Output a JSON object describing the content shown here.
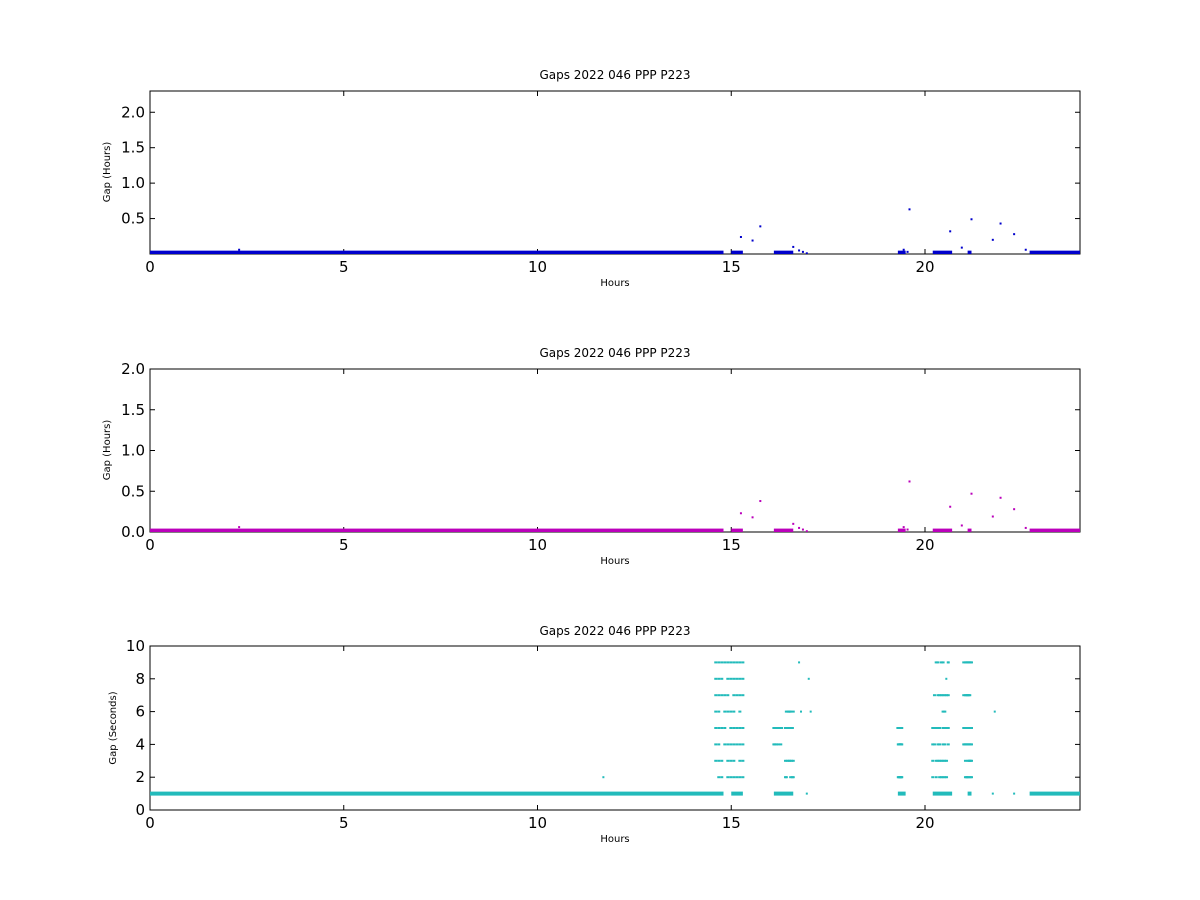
{
  "chart_data": [
    {
      "type": "scatter",
      "title": "Gaps 2022 046 PPP  P223",
      "xlabel": "Hours",
      "ylabel": "Gap (Hours)",
      "xlim": [
        0,
        24
      ],
      "ylim": [
        0,
        2.3
      ],
      "x_ticks": [
        0,
        5,
        10,
        15,
        20
      ],
      "x_tick_labels": [
        "0",
        "5",
        "10",
        "15",
        "20"
      ],
      "y_ticks": [
        0.5,
        1.0,
        1.5,
        2.0
      ],
      "y_tick_labels": [
        "0.5",
        "1.0",
        "1.5",
        "2.0"
      ],
      "grid": false,
      "color": "#0000cc",
      "series": [
        {
          "baseline_segments": [
            [
              0,
              14.8
            ],
            [
              15.0,
              15.3
            ],
            [
              16.1,
              16.6
            ],
            [
              19.3,
              19.5
            ],
            [
              20.2,
              20.7
            ],
            [
              21.1,
              21.2
            ],
            [
              22.7,
              24
            ]
          ],
          "baseline_value": 0.005,
          "points": [
            [
              2.3,
              0.06
            ],
            [
              6.0,
              0.02
            ],
            [
              15.25,
              0.24
            ],
            [
              15.55,
              0.19
            ],
            [
              15.75,
              0.39
            ],
            [
              16.6,
              0.1
            ],
            [
              16.75,
              0.05
            ],
            [
              16.85,
              0.03
            ],
            [
              16.95,
              0.01
            ],
            [
              19.45,
              0.06
            ],
            [
              19.55,
              0.03
            ],
            [
              19.6,
              0.63
            ],
            [
              20.65,
              0.32
            ],
            [
              20.95,
              0.09
            ],
            [
              21.2,
              0.49
            ],
            [
              21.75,
              0.2
            ],
            [
              21.95,
              0.43
            ],
            [
              22.3,
              0.28
            ],
            [
              22.6,
              0.06
            ]
          ]
        }
      ]
    },
    {
      "type": "scatter",
      "title": "Gaps 2022 046 PPP  P223",
      "xlabel": "Hours",
      "ylabel": "Gap (Hours)",
      "xlim": [
        0,
        24
      ],
      "ylim": [
        0,
        2.0
      ],
      "x_ticks": [
        0,
        5,
        10,
        15,
        20
      ],
      "x_tick_labels": [
        "0",
        "5",
        "10",
        "15",
        "20"
      ],
      "y_ticks": [
        0.0,
        0.5,
        1.0,
        1.5,
        2.0
      ],
      "y_tick_labels": [
        "0.0",
        "0.5",
        "1.0",
        "1.5",
        "2.0"
      ],
      "grid": false,
      "color": "#bb00bb",
      "series": [
        {
          "baseline_segments": [
            [
              0,
              14.8
            ],
            [
              15.0,
              15.3
            ],
            [
              16.1,
              16.6
            ],
            [
              19.3,
              19.5
            ],
            [
              20.2,
              20.7
            ],
            [
              21.1,
              21.2
            ],
            [
              22.7,
              24
            ]
          ],
          "baseline_value": 0.005,
          "points": [
            [
              2.3,
              0.06
            ],
            [
              6.0,
              0.02
            ],
            [
              15.25,
              0.23
            ],
            [
              15.55,
              0.18
            ],
            [
              15.75,
              0.38
            ],
            [
              16.6,
              0.1
            ],
            [
              16.75,
              0.05
            ],
            [
              16.85,
              0.03
            ],
            [
              16.95,
              0.01
            ],
            [
              19.45,
              0.06
            ],
            [
              19.55,
              0.03
            ],
            [
              19.6,
              0.62
            ],
            [
              20.65,
              0.31
            ],
            [
              20.95,
              0.08
            ],
            [
              21.2,
              0.47
            ],
            [
              21.75,
              0.19
            ],
            [
              21.95,
              0.42
            ],
            [
              22.3,
              0.28
            ],
            [
              22.6,
              0.05
            ]
          ]
        }
      ]
    },
    {
      "type": "scatter",
      "title": "Gaps 2022 046 PPP  P223",
      "xlabel": "Hours",
      "ylabel": "Gap (Seconds)",
      "xlim": [
        0,
        24
      ],
      "ylim": [
        0,
        10
      ],
      "x_ticks": [
        0,
        5,
        10,
        15,
        20
      ],
      "x_tick_labels": [
        "0",
        "5",
        "10",
        "15",
        "20"
      ],
      "y_ticks": [
        0,
        2,
        4,
        6,
        8,
        10
      ],
      "y_tick_labels": [
        "0",
        "2",
        "4",
        "6",
        "8",
        "10"
      ],
      "grid": false,
      "color": "#22bbbb",
      "series": [
        {
          "baseline_segments": [
            [
              0,
              14.8
            ],
            [
              15.0,
              15.3
            ],
            [
              16.1,
              16.6
            ],
            [
              19.3,
              19.5
            ],
            [
              20.2,
              20.7
            ],
            [
              21.1,
              21.2
            ],
            [
              22.7,
              24
            ]
          ],
          "baseline_value": 1,
          "dense_columns": [
            {
              "x_range": [
                14.6,
                15.3
              ],
              "values": [
                2,
                3,
                4,
                5,
                6,
                7,
                8,
                9
              ]
            },
            {
              "x_range": [
                16.1,
                16.3
              ],
              "values": [
                4,
                5
              ]
            },
            {
              "x_range": [
                16.4,
                16.6
              ],
              "values": [
                2,
                3,
                5,
                6
              ]
            },
            {
              "x_range": [
                19.3,
                19.4
              ],
              "values": [
                2,
                4,
                5
              ]
            },
            {
              "x_range": [
                20.2,
                20.6
              ],
              "values": [
                2,
                3,
                4,
                5,
                6,
                7,
                9
              ]
            },
            {
              "x_range": [
                21.0,
                21.2
              ],
              "values": [
                2,
                3,
                4,
                5,
                7,
                9
              ]
            }
          ],
          "points": [
            [
              11.7,
              2
            ],
            [
              16.75,
              9
            ],
            [
              16.8,
              6
            ],
            [
              16.95,
              1
            ],
            [
              17.0,
              8
            ],
            [
              17.05,
              6
            ],
            [
              20.55,
              8
            ],
            [
              20.6,
              9
            ],
            [
              21.75,
              1
            ],
            [
              21.8,
              6
            ],
            [
              22.3,
              1
            ]
          ]
        }
      ]
    }
  ]
}
